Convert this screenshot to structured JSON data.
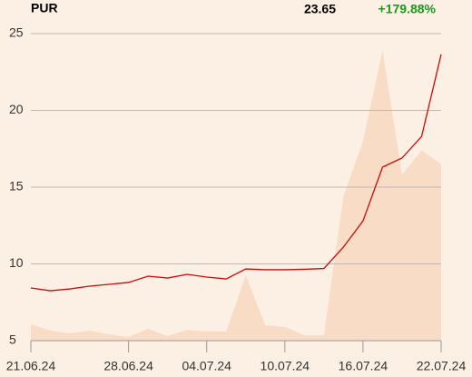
{
  "chart_data": {
    "type": "line",
    "title": "PUR",
    "last_price": "23.65",
    "change": "+179.88%",
    "categories": [
      "21.06.24",
      null,
      null,
      null,
      null,
      "28.06.24",
      null,
      null,
      null,
      "04.07.24",
      null,
      null,
      null,
      "10.07.24",
      null,
      null,
      null,
      "16.07.24",
      null,
      null,
      null,
      "22.07.24"
    ],
    "series": [
      {
        "color": "#f9dcc6",
        "kind": "area",
        "values": [
          6.07,
          5.65,
          5.47,
          5.65,
          5.41,
          5.24,
          5.77,
          5.3,
          5.7,
          5.6,
          5.6,
          9.26,
          6.0,
          5.9,
          5.35,
          5.35,
          14.4,
          18.0,
          23.9,
          15.8,
          17.4,
          16.5
        ]
      },
      {
        "color": "#cc0a0a",
        "kind": "line",
        "values": [
          8.43,
          8.25,
          8.37,
          8.55,
          8.67,
          8.79,
          9.2,
          9.08,
          9.32,
          9.14,
          9.02,
          9.67,
          9.62,
          9.62,
          9.65,
          9.7,
          11.1,
          12.8,
          16.3,
          16.9,
          18.3,
          23.65
        ]
      }
    ],
    "ylim": [
      5,
      25
    ],
    "yticks": [
      5,
      10,
      15,
      20,
      25
    ],
    "grid": true,
    "change_color": "#1a9a1a"
  }
}
